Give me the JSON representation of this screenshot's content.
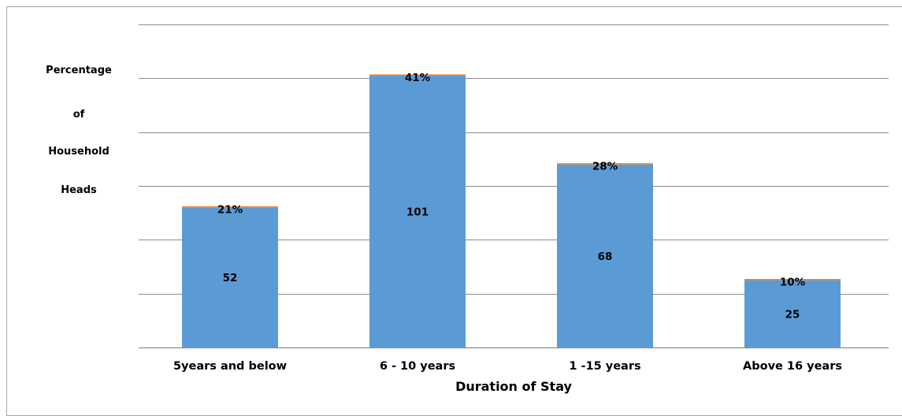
{
  "chart_data": {
    "type": "bar",
    "categories": [
      "5years and below",
      "6 - 10 years",
      "1 -15 years",
      "Above 16 years"
    ],
    "values": [
      52,
      101,
      68,
      25
    ],
    "percent_labels": [
      "21%",
      "41%",
      "28%",
      "10%"
    ],
    "xlabel": "Duration of Stay",
    "ylabel_lines": [
      "Percentage",
      "of",
      "Household",
      "Heads"
    ],
    "ylim": [
      0,
      120
    ],
    "grid": true,
    "colors": {
      "bar": "#5b9bd5",
      "bar_top": "#ed7d31",
      "grid": "#8c8c8c",
      "frame": "#a6a6a6"
    }
  }
}
